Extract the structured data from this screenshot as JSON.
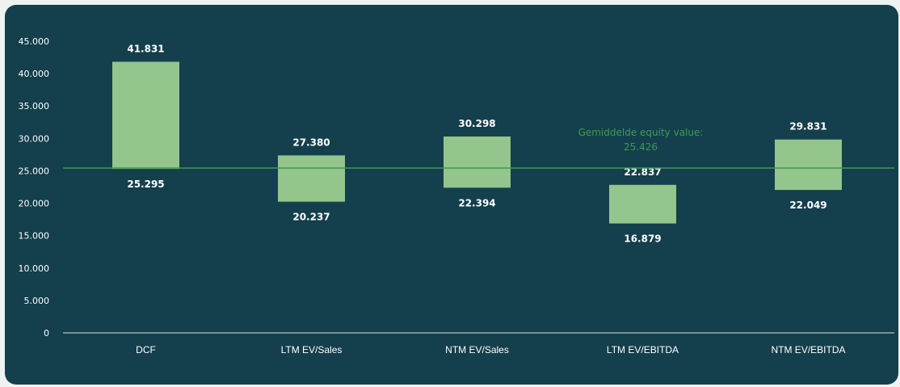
{
  "colors": {
    "background": "#143f4c",
    "bar": "#93c58c",
    "average_line": "#3f9a52",
    "average_text": "#3f9a52",
    "axis": "#d7e3e0",
    "text": "#ffffff"
  },
  "chart_data": {
    "type": "bar",
    "subtype": "floating-range",
    "categories": [
      "DCF",
      "LTM EV/Sales",
      "NTM EV/Sales",
      "LTM EV/EBITDA",
      "NTM EV/EBITDA"
    ],
    "ranges": [
      {
        "low": 25295,
        "high": 41831,
        "low_label": "25.295",
        "high_label": "41.831"
      },
      {
        "low": 20237,
        "high": 27380,
        "low_label": "20.237",
        "high_label": "27.380"
      },
      {
        "low": 22394,
        "high": 30298,
        "low_label": "22.394",
        "high_label": "30.298"
      },
      {
        "low": 16879,
        "high": 22837,
        "low_label": "16.879",
        "high_label": "22.837"
      },
      {
        "low": 22049,
        "high": 29831,
        "low_label": "22.049",
        "high_label": "29.831"
      }
    ],
    "y_ticks": [
      "0",
      "5.000",
      "10.000",
      "15.000",
      "20.000",
      "25.000",
      "30.000",
      "35.000",
      "40.000",
      "45.000"
    ],
    "ylim": [
      0,
      45000
    ],
    "grid": false,
    "reference_line": {
      "value": 25426,
      "label_line1": "Gemiddelde equity value:",
      "label_line2": "25.426"
    }
  }
}
